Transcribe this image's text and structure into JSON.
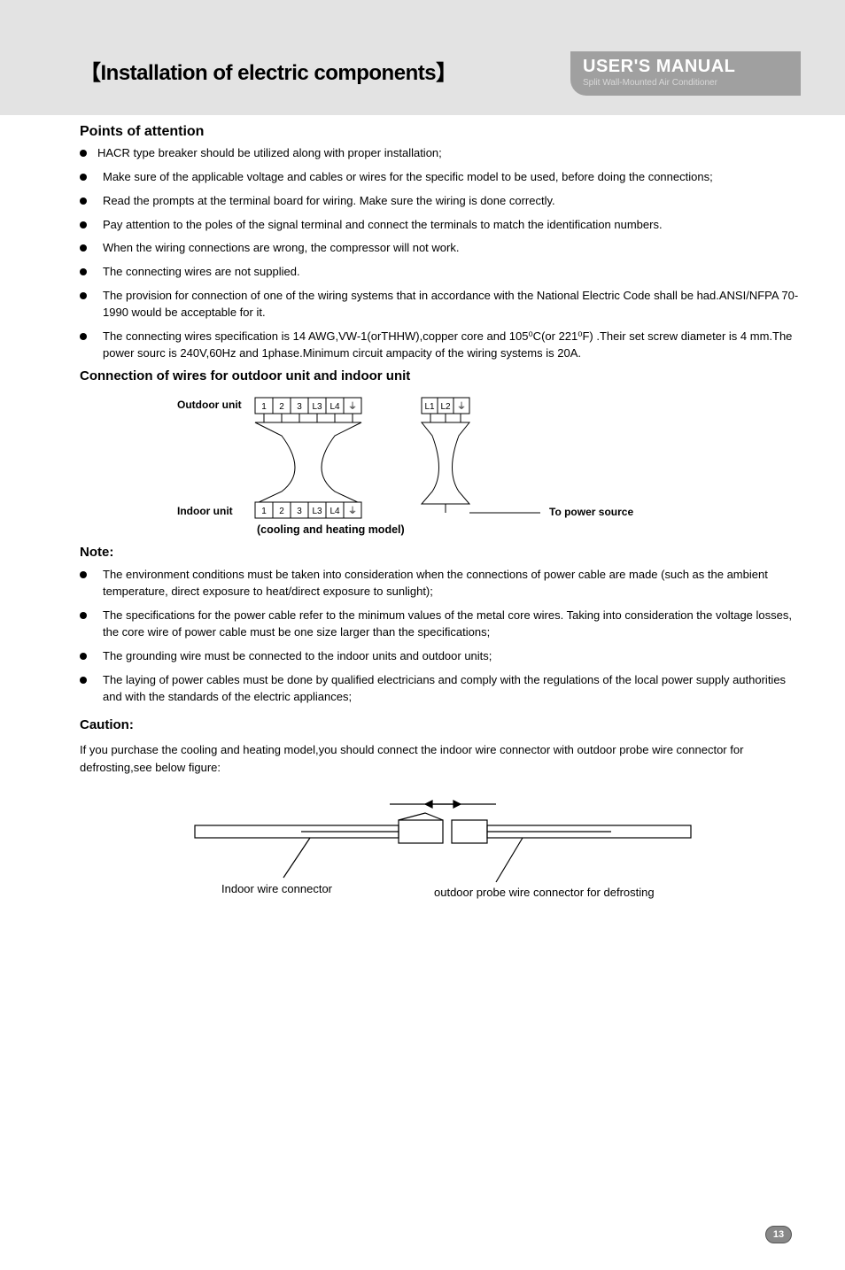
{
  "header": {
    "section_title": "【Installation of electric components】",
    "badge_title": "USER'S MANUAL",
    "badge_sub": "Split Wall-Mounted Air Conditioner"
  },
  "points": {
    "heading": "Points of attention",
    "items": [
      "HACR type breaker should be utilized along with proper installation;",
      "Make sure of the applicable voltage and cables or wires for the specific model to be used, before doing the connections;",
      "Read the prompts at the terminal board for wiring. Make sure the wiring is done correctly.",
      "Pay attention to the poles of the signal terminal and connect the terminals to match the identification numbers.",
      "When the wiring connections are wrong, the compressor will not work.",
      "The connecting wires are not supplied.",
      "The provision for connection of one of the wiring systems that in accordance with the National Electric Code shall be had.ANSI/NFPA 70-1990 would be acceptable for it.",
      "The connecting wires specification is 14 AWG,VW-1(orTHHW),copper core and 105⁰C(or 221⁰F) .Their set screw diameter is 4 mm.The power sourc is 240V,60Hz and 1phase.Minimum circuit ampacity of the wiring systems is 20A."
    ]
  },
  "connection": {
    "heading": "Connection of wires for outdoor unit and indoor unit",
    "outdoor_label": "Outdoor unit",
    "indoor_label": "Indoor unit",
    "power_label": "To power source",
    "caption": "(cooling and heating model)",
    "terminals_outdoor": [
      "1",
      "2",
      "3",
      "L3",
      "L4",
      "⏚",
      "L1",
      "L2",
      "⏚"
    ],
    "terminals_indoor": [
      "1",
      "2",
      "3",
      "L3",
      "L4",
      "⏚"
    ]
  },
  "note": {
    "heading": "Note:",
    "items": [
      "The environment conditions must be taken into consideration when the connections of power cable are made (such as the ambient temperature, direct exposure to heat/direct exposure to sunlight);",
      "The specifications for the power cable refer to the minimum values of the metal core wires. Taking into consideration the voltage losses, the core wire of power cable must be one size larger than the specifications;",
      "The grounding wire must be connected to the indoor units and outdoor units;",
      "The laying of power cables must be done by qualified electricians and comply with the regulations of the local power supply authorities and with the standards of the electric appliances;"
    ]
  },
  "caution": {
    "heading": "Caution:",
    "text": "If you purchase the cooling and heating model,you should connect the indoor wire connector with outdoor probe wire connector for defrosting,see below figure:",
    "label_left": "Indoor wire connector",
    "label_right": "outdoor probe wire connector for defrosting"
  },
  "page_number": "13"
}
